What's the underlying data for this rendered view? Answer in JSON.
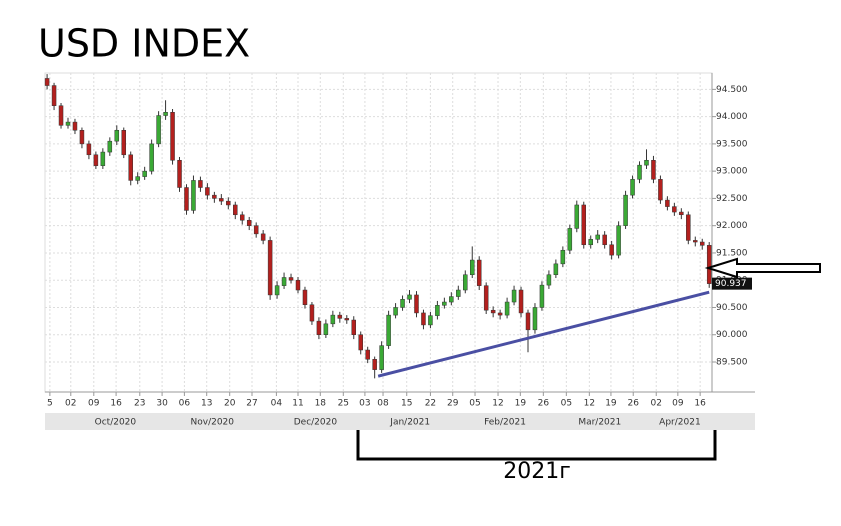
{
  "chart_data": {
    "type": "candlestick",
    "title": "USD INDEX",
    "up_color": "#3aa935",
    "down_color": "#b3201e",
    "grid": true,
    "ohlc": [
      [
        94.7,
        94.78,
        94.5,
        94.57
      ],
      [
        94.57,
        94.62,
        94.12,
        94.2
      ],
      [
        94.2,
        94.25,
        93.78,
        93.84
      ],
      [
        93.84,
        93.98,
        93.78,
        93.9
      ],
      [
        93.9,
        93.96,
        93.68,
        93.75
      ],
      [
        93.75,
        93.8,
        93.42,
        93.5
      ],
      [
        93.5,
        93.56,
        93.22,
        93.3
      ],
      [
        93.3,
        93.36,
        93.04,
        93.1
      ],
      [
        93.1,
        93.42,
        93.04,
        93.35
      ],
      [
        93.35,
        93.62,
        93.28,
        93.55
      ],
      [
        93.55,
        93.84,
        93.48,
        93.75
      ],
      [
        93.75,
        93.8,
        93.24,
        93.3
      ],
      [
        93.3,
        93.36,
        92.74,
        92.83
      ],
      [
        92.83,
        92.98,
        92.76,
        92.9
      ],
      [
        92.9,
        93.08,
        92.84,
        93.0
      ],
      [
        93.0,
        93.58,
        92.94,
        93.5
      ],
      [
        93.5,
        94.1,
        93.44,
        94.02
      ],
      [
        94.02,
        94.3,
        93.94,
        94.08
      ],
      [
        94.08,
        94.14,
        93.12,
        93.2
      ],
      [
        93.2,
        93.26,
        92.62,
        92.7
      ],
      [
        92.7,
        92.76,
        92.2,
        92.28
      ],
      [
        92.28,
        92.92,
        92.22,
        92.83
      ],
      [
        92.83,
        92.9,
        92.62,
        92.7
      ],
      [
        92.7,
        92.78,
        92.48,
        92.56
      ],
      [
        92.56,
        92.62,
        92.42,
        92.5
      ],
      [
        92.5,
        92.58,
        92.38,
        92.45
      ],
      [
        92.45,
        92.52,
        92.3,
        92.38
      ],
      [
        92.38,
        92.44,
        92.12,
        92.2
      ],
      [
        92.2,
        92.26,
        92.02,
        92.1
      ],
      [
        92.1,
        92.16,
        91.92,
        92.0
      ],
      [
        92.0,
        92.06,
        91.78,
        91.85
      ],
      [
        91.85,
        91.92,
        91.66,
        91.73
      ],
      [
        91.73,
        91.8,
        90.64,
        90.73
      ],
      [
        90.73,
        90.98,
        90.66,
        90.9
      ],
      [
        90.9,
        91.14,
        90.84,
        91.05
      ],
      [
        91.05,
        91.12,
        90.94,
        91.0
      ],
      [
        91.0,
        91.06,
        90.76,
        90.82
      ],
      [
        90.82,
        90.88,
        90.48,
        90.55
      ],
      [
        90.55,
        90.6,
        90.18,
        90.25
      ],
      [
        90.25,
        90.32,
        89.92,
        90.0
      ],
      [
        90.0,
        90.28,
        89.94,
        90.2
      ],
      [
        90.2,
        90.44,
        90.14,
        90.36
      ],
      [
        90.36,
        90.42,
        90.22,
        90.3
      ],
      [
        90.3,
        90.36,
        90.2,
        90.27
      ],
      [
        90.27,
        90.34,
        89.92,
        90.0
      ],
      [
        90.0,
        90.06,
        89.64,
        89.72
      ],
      [
        89.72,
        89.78,
        89.48,
        89.55
      ],
      [
        89.55,
        89.6,
        89.2,
        89.36
      ],
      [
        89.36,
        89.88,
        89.3,
        89.8
      ],
      [
        89.8,
        90.44,
        89.74,
        90.36
      ],
      [
        90.36,
        90.58,
        90.3,
        90.5
      ],
      [
        90.5,
        90.72,
        90.44,
        90.65
      ],
      [
        90.65,
        90.82,
        90.58,
        90.73
      ],
      [
        90.73,
        90.8,
        90.32,
        90.4
      ],
      [
        90.4,
        90.46,
        90.1,
        90.18
      ],
      [
        90.18,
        90.42,
        90.12,
        90.35
      ],
      [
        90.35,
        90.62,
        90.28,
        90.54
      ],
      [
        90.54,
        90.68,
        90.48,
        90.6
      ],
      [
        90.6,
        90.78,
        90.54,
        90.7
      ],
      [
        90.7,
        90.9,
        90.64,
        90.82
      ],
      [
        90.82,
        91.18,
        90.76,
        91.1
      ],
      [
        91.1,
        91.62,
        91.04,
        91.37
      ],
      [
        91.37,
        91.44,
        90.82,
        90.9
      ],
      [
        90.9,
        90.96,
        90.38,
        90.45
      ],
      [
        90.45,
        90.52,
        90.32,
        90.4
      ],
      [
        90.4,
        90.46,
        90.28,
        90.36
      ],
      [
        90.36,
        90.68,
        90.3,
        90.6
      ],
      [
        90.6,
        90.9,
        90.54,
        90.82
      ],
      [
        90.82,
        90.88,
        90.32,
        90.4
      ],
      [
        90.4,
        90.46,
        89.68,
        90.09
      ],
      [
        90.09,
        90.58,
        90.02,
        90.5
      ],
      [
        90.5,
        90.98,
        90.44,
        90.91
      ],
      [
        90.91,
        91.18,
        90.84,
        91.1
      ],
      [
        91.1,
        91.38,
        91.04,
        91.3
      ],
      [
        91.3,
        91.62,
        91.24,
        91.55
      ],
      [
        91.55,
        92.02,
        91.48,
        91.95
      ],
      [
        91.95,
        92.46,
        91.88,
        92.38
      ],
      [
        92.38,
        92.44,
        91.58,
        91.65
      ],
      [
        91.65,
        91.82,
        91.58,
        91.75
      ],
      [
        91.75,
        91.92,
        91.68,
        91.83
      ],
      [
        91.83,
        91.9,
        91.58,
        91.65
      ],
      [
        91.65,
        91.72,
        91.38,
        91.46
      ],
      [
        91.46,
        92.08,
        91.4,
        92.0
      ],
      [
        92.0,
        92.64,
        91.94,
        92.56
      ],
      [
        92.56,
        92.92,
        92.5,
        92.85
      ],
      [
        92.85,
        93.18,
        92.78,
        93.11
      ],
      [
        93.11,
        93.4,
        93.04,
        93.2
      ],
      [
        93.2,
        93.28,
        92.78,
        92.85
      ],
      [
        92.85,
        92.92,
        92.4,
        92.47
      ],
      [
        92.47,
        92.54,
        92.28,
        92.35
      ],
      [
        92.35,
        92.42,
        92.18,
        92.25
      ],
      [
        92.25,
        92.32,
        92.12,
        92.2
      ],
      [
        92.2,
        92.26,
        91.66,
        91.73
      ],
      [
        91.73,
        91.8,
        91.62,
        91.7
      ],
      [
        91.7,
        91.76,
        91.56,
        91.64
      ],
      [
        91.64,
        91.7,
        90.86,
        90.937
      ]
    ],
    "trendline": {
      "x": [
        47.5,
        95
      ],
      "y": [
        89.24,
        90.78
      ],
      "color": "#4a4fa3"
    },
    "xlim": [
      -0.3,
      95.4
    ],
    "ylim": [
      88.95,
      94.8
    ],
    "yticks": [
      {
        "value": 89.5,
        "label": "89.500"
      },
      {
        "value": 90,
        "label": "90.000"
      },
      {
        "value": 90.5,
        "label": "90.500"
      },
      {
        "value": 91,
        "label": "91.000"
      },
      {
        "value": 91.5,
        "label": "91.500"
      },
      {
        "value": 92,
        "label": "92.000"
      },
      {
        "value": 92.5,
        "label": "92.500"
      },
      {
        "value": 93,
        "label": "93.000"
      },
      {
        "value": 93.5,
        "label": "93.500"
      },
      {
        "value": 94,
        "label": "94.000"
      },
      {
        "value": 94.5,
        "label": "94.500"
      }
    ],
    "xticks": [
      {
        "value": 0.4,
        "label": "5"
      },
      {
        "value": 3.4,
        "label": "02"
      },
      {
        "value": 6.7,
        "label": "09"
      },
      {
        "value": 9.9,
        "label": "16"
      },
      {
        "value": 13.3,
        "label": "23"
      },
      {
        "value": 16.5,
        "label": "30"
      },
      {
        "value": 19.7,
        "label": "06"
      },
      {
        "value": 22.9,
        "label": "13"
      },
      {
        "value": 26.2,
        "label": "20"
      },
      {
        "value": 29.4,
        "label": "27"
      },
      {
        "value": 32.9,
        "label": "04"
      },
      {
        "value": 36,
        "label": "11"
      },
      {
        "value": 39.2,
        "label": "18"
      },
      {
        "value": 42.5,
        "label": "25"
      },
      {
        "value": 45.6,
        "label": "03"
      },
      {
        "value": 48.2,
        "label": "08"
      },
      {
        "value": 51.6,
        "label": "15"
      },
      {
        "value": 55,
        "label": "22"
      },
      {
        "value": 58.2,
        "label": "29"
      },
      {
        "value": 61.4,
        "label": "05"
      },
      {
        "value": 64.7,
        "label": "12"
      },
      {
        "value": 67.9,
        "label": "19"
      },
      {
        "value": 71.2,
        "label": "26"
      },
      {
        "value": 74.5,
        "label": "05"
      },
      {
        "value": 77.8,
        "label": "12"
      },
      {
        "value": 80.9,
        "label": "19"
      },
      {
        "value": 84.1,
        "label": "26"
      },
      {
        "value": 87.4,
        "label": "02"
      },
      {
        "value": 90.5,
        "label": "09"
      },
      {
        "value": 93.7,
        "label": "16"
      }
    ],
    "month_labels": [
      {
        "value": 9.8,
        "label": "Oct/2020"
      },
      {
        "value": 23.7,
        "label": "Nov/2020"
      },
      {
        "value": 38.5,
        "label": "Dec/2020"
      },
      {
        "value": 52.1,
        "label": "Jan/2021"
      },
      {
        "value": 65.7,
        "label": "Feb/2021"
      },
      {
        "value": 79.3,
        "label": "Mar/2021"
      },
      {
        "value": 90.8,
        "label": "Apr/2021"
      }
    ],
    "annotation": "2021г"
  }
}
